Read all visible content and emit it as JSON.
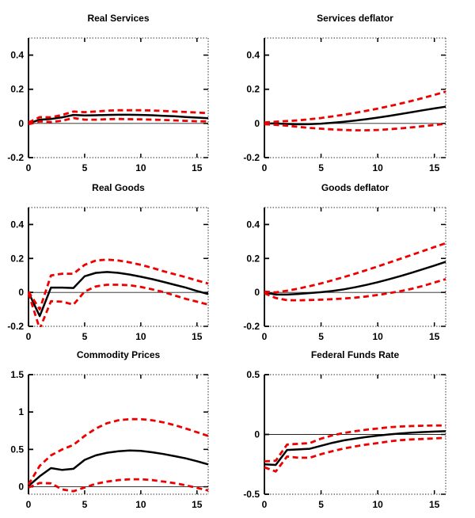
{
  "figure": {
    "background": "#ffffff",
    "description": "3x2 grid of impulse response plots with solid median line and dashed confidence bands"
  },
  "colors": {
    "response_line": "#000000",
    "confidence_band": "#ee0000",
    "axis": "#000000",
    "zero_line": "#222222"
  },
  "chart_data": [
    {
      "type": "line",
      "title": "Real Services",
      "x": [
        0,
        1,
        2,
        3,
        4,
        5,
        6,
        7,
        8,
        9,
        10,
        11,
        12,
        13,
        14,
        15,
        16
      ],
      "xlim": [
        0,
        16
      ],
      "ylim": [
        -0.2,
        0.5
      ],
      "xticks": [
        0,
        5,
        10,
        15
      ],
      "yticks": [
        -0.2,
        0,
        0.2,
        0.4
      ],
      "grid": false,
      "legend": "none",
      "zero_line": true,
      "series": [
        {
          "name": "median-response",
          "color": "#000000",
          "dash": "solid",
          "values": [
            0,
            0.022,
            0.026,
            0.036,
            0.05,
            0.047,
            0.048,
            0.05,
            0.051,
            0.051,
            0.05,
            0.048,
            0.045,
            0.042,
            0.038,
            0.034,
            0.031
          ]
        },
        {
          "name": "upper-band",
          "color": "#ee0000",
          "dash": "dashed",
          "values": [
            0.006,
            0.037,
            0.036,
            0.05,
            0.07,
            0.066,
            0.07,
            0.075,
            0.077,
            0.077,
            0.077,
            0.076,
            0.073,
            0.07,
            0.067,
            0.064,
            0.06
          ]
        },
        {
          "name": "lower-band",
          "color": "#ee0000",
          "dash": "dashed",
          "values": [
            -0.005,
            0.012,
            0.008,
            0.016,
            0.032,
            0.022,
            0.022,
            0.025,
            0.026,
            0.025,
            0.024,
            0.022,
            0.02,
            0.018,
            0.015,
            0.013,
            0.012
          ]
        }
      ]
    },
    {
      "type": "line",
      "title": "Services deflator",
      "x": [
        0,
        1,
        2,
        3,
        4,
        5,
        6,
        7,
        8,
        9,
        10,
        11,
        12,
        13,
        14,
        15,
        16
      ],
      "xlim": [
        0,
        16
      ],
      "ylim": [
        -0.2,
        0.5
      ],
      "xticks": [
        0,
        5,
        10,
        15
      ],
      "yticks": [
        -0.2,
        0,
        0.2,
        0.4
      ],
      "grid": false,
      "legend": "none",
      "zero_line": true,
      "series": [
        {
          "name": "median-response",
          "color": "#000000",
          "dash": "solid",
          "values": [
            0,
            0,
            -0.003,
            -0.005,
            -0.004,
            -0.001,
            0.004,
            0.01,
            0.017,
            0.025,
            0.034,
            0.044,
            0.055,
            0.066,
            0.077,
            0.088,
            0.098
          ]
        },
        {
          "name": "upper-band",
          "color": "#ee0000",
          "dash": "dashed",
          "values": [
            0.006,
            0.01,
            0.014,
            0.018,
            0.025,
            0.032,
            0.041,
            0.051,
            0.062,
            0.074,
            0.087,
            0.101,
            0.116,
            0.132,
            0.149,
            0.167,
            0.186
          ]
        },
        {
          "name": "lower-band",
          "color": "#ee0000",
          "dash": "dashed",
          "values": [
            -0.005,
            -0.008,
            -0.013,
            -0.02,
            -0.026,
            -0.031,
            -0.035,
            -0.038,
            -0.04,
            -0.04,
            -0.038,
            -0.034,
            -0.029,
            -0.023,
            -0.016,
            -0.009,
            -0.002
          ]
        }
      ]
    },
    {
      "type": "line",
      "title": "Real Goods",
      "x": [
        0,
        1,
        2,
        3,
        4,
        5,
        6,
        7,
        8,
        9,
        10,
        11,
        12,
        13,
        14,
        15,
        16
      ],
      "xlim": [
        0,
        16
      ],
      "ylim": [
        -0.2,
        0.5
      ],
      "xticks": [
        0,
        5,
        10,
        15
      ],
      "yticks": [
        -0.2,
        0,
        0.2,
        0.4
      ],
      "grid": false,
      "legend": "none",
      "zero_line": true,
      "series": [
        {
          "name": "median-response",
          "color": "#000000",
          "dash": "solid",
          "values": [
            0,
            -0.14,
            0.028,
            0.028,
            0.026,
            0.095,
            0.115,
            0.12,
            0.115,
            0.105,
            0.092,
            0.078,
            0.062,
            0.045,
            0.028,
            0.008,
            -0.01
          ]
        },
        {
          "name": "upper-band",
          "color": "#ee0000",
          "dash": "dashed",
          "values": [
            0.005,
            -0.1,
            0.1,
            0.11,
            0.11,
            0.162,
            0.188,
            0.193,
            0.188,
            0.177,
            0.162,
            0.145,
            0.125,
            0.107,
            0.09,
            0.07,
            0.052
          ]
        },
        {
          "name": "lower-band",
          "color": "#ee0000",
          "dash": "dashed",
          "values": [
            -0.005,
            -0.215,
            -0.052,
            -0.055,
            -0.072,
            0.005,
            0.035,
            0.045,
            0.045,
            0.042,
            0.032,
            0.018,
            0.002,
            -0.018,
            -0.038,
            -0.055,
            -0.072
          ]
        }
      ]
    },
    {
      "type": "line",
      "title": "Goods deflator",
      "x": [
        0,
        1,
        2,
        3,
        4,
        5,
        6,
        7,
        8,
        9,
        10,
        11,
        12,
        13,
        14,
        15,
        16
      ],
      "xlim": [
        0,
        16
      ],
      "ylim": [
        -0.2,
        0.5
      ],
      "xticks": [
        0,
        5,
        10,
        15
      ],
      "yticks": [
        -0.2,
        0,
        0.2,
        0.4
      ],
      "grid": false,
      "legend": "none",
      "zero_line": true,
      "series": [
        {
          "name": "median-response",
          "color": "#000000",
          "dash": "solid",
          "values": [
            0,
            -0.013,
            -0.013,
            -0.009,
            -0.004,
            0.001,
            0.008,
            0.018,
            0.03,
            0.044,
            0.06,
            0.077,
            0.096,
            0.116,
            0.137,
            0.158,
            0.18
          ]
        },
        {
          "name": "upper-band",
          "color": "#ee0000",
          "dash": "dashed",
          "values": [
            0.005,
            0,
            0.01,
            0.022,
            0.037,
            0.053,
            0.071,
            0.09,
            0.11,
            0.131,
            0.153,
            0.175,
            0.198,
            0.221,
            0.244,
            0.267,
            0.29
          ]
        },
        {
          "name": "lower-band",
          "color": "#ee0000",
          "dash": "dashed",
          "values": [
            -0.005,
            -0.033,
            -0.046,
            -0.047,
            -0.045,
            -0.043,
            -0.04,
            -0.036,
            -0.031,
            -0.024,
            -0.015,
            -0.005,
            0.007,
            0.021,
            0.038,
            0.058,
            0.078
          ]
        }
      ]
    },
    {
      "type": "line",
      "title": "Commodity Prices",
      "x": [
        0,
        1,
        2,
        3,
        4,
        5,
        6,
        7,
        8,
        9,
        10,
        11,
        12,
        13,
        14,
        15,
        16
      ],
      "xlim": [
        0,
        16
      ],
      "ylim": [
        -0.1,
        1.5
      ],
      "xticks": [
        0,
        5,
        10,
        15
      ],
      "yticks": [
        0,
        0.5,
        1,
        1.5
      ],
      "grid": false,
      "legend": "none",
      "zero_line": true,
      "series": [
        {
          "name": "median-response",
          "color": "#000000",
          "dash": "solid",
          "values": [
            0.01,
            0.14,
            0.25,
            0.225,
            0.24,
            0.36,
            0.42,
            0.455,
            0.475,
            0.485,
            0.48,
            0.462,
            0.438,
            0.41,
            0.38,
            0.342,
            0.3
          ]
        },
        {
          "name": "upper-band",
          "color": "#ee0000",
          "dash": "dashed",
          "values": [
            0.03,
            0.28,
            0.42,
            0.5,
            0.56,
            0.68,
            0.78,
            0.85,
            0.89,
            0.905,
            0.905,
            0.89,
            0.862,
            0.825,
            0.78,
            0.73,
            0.68
          ]
        },
        {
          "name": "lower-band",
          "color": "#ee0000",
          "dash": "dashed",
          "values": [
            -0.01,
            0.05,
            0.045,
            -0.035,
            -0.06,
            -0.01,
            0.04,
            0.07,
            0.09,
            0.1,
            0.1,
            0.09,
            0.07,
            0.048,
            0.02,
            -0.015,
            -0.05
          ]
        }
      ]
    },
    {
      "type": "line",
      "title": "Federal Funds Rate",
      "x": [
        0,
        1,
        2,
        3,
        4,
        5,
        6,
        7,
        8,
        9,
        10,
        11,
        12,
        13,
        14,
        15,
        16
      ],
      "xlim": [
        0,
        16
      ],
      "ylim": [
        -0.5,
        0.5
      ],
      "xticks": [
        0,
        5,
        10,
        15
      ],
      "yticks": [
        -0.5,
        0,
        0.5
      ],
      "grid": false,
      "legend": "none",
      "zero_line": true,
      "series": [
        {
          "name": "median-response",
          "color": "#000000",
          "dash": "solid",
          "values": [
            -0.25,
            -0.255,
            -0.13,
            -0.125,
            -0.12,
            -0.095,
            -0.07,
            -0.05,
            -0.035,
            -0.022,
            -0.01,
            0,
            0.008,
            0.015,
            0.02,
            0.024,
            0.027
          ]
        },
        {
          "name": "upper-band",
          "color": "#ee0000",
          "dash": "dashed",
          "values": [
            -0.225,
            -0.22,
            -0.085,
            -0.078,
            -0.072,
            -0.035,
            -0.008,
            0.012,
            0.027,
            0.04,
            0.05,
            0.06,
            0.066,
            0.07,
            0.073,
            0.075,
            0.075
          ]
        },
        {
          "name": "lower-band",
          "color": "#ee0000",
          "dash": "dashed",
          "values": [
            -0.275,
            -0.31,
            -0.185,
            -0.195,
            -0.195,
            -0.165,
            -0.14,
            -0.118,
            -0.1,
            -0.085,
            -0.072,
            -0.058,
            -0.048,
            -0.042,
            -0.038,
            -0.033,
            -0.028
          ]
        }
      ]
    }
  ]
}
